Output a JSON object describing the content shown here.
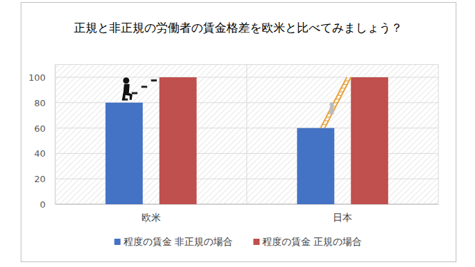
{
  "chart_data": {
    "type": "bar",
    "title": "正規と非正規の労働者の賃金格差を欧米と比べてみましょう？",
    "categories": [
      "欧米",
      "日本"
    ],
    "series": [
      {
        "name": "程度の賃金 非正規の場合",
        "color": "#4472c4",
        "values": [
          80,
          60
        ]
      },
      {
        "name": "程度の賃金 正規の場合",
        "color": "#c0504d",
        "values": [
          100,
          100
        ]
      }
    ],
    "ylim": [
      0,
      110
    ],
    "yticks": [
      0,
      20,
      40,
      60,
      80,
      100
    ],
    "grid": true,
    "legend": "bottom"
  }
}
